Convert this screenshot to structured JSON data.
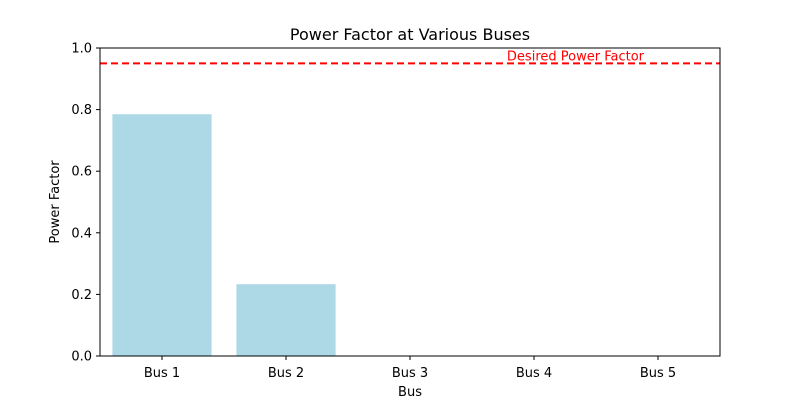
{
  "chart_data": {
    "type": "bar",
    "title": "Power Factor at Various Buses",
    "xlabel": "Bus",
    "ylabel": "Power Factor",
    "categories": [
      "Bus 1",
      "Bus 2",
      "Bus 3",
      "Bus 4",
      "Bus 5"
    ],
    "values": [
      0.785,
      0.233,
      0,
      0,
      0
    ],
    "ylim": [
      0,
      1.0
    ],
    "yticks": [
      0.0,
      0.2,
      0.4,
      0.6,
      0.8,
      1.0
    ],
    "ytick_labels": [
      "0.0",
      "0.2",
      "0.4",
      "0.6",
      "0.8",
      "1.0"
    ],
    "grid": false,
    "bar_color": "#add8e6",
    "reference_line": {
      "value": 0.95,
      "label": "Desired Power Factor",
      "color": "#ff0000",
      "style": "dashed"
    }
  }
}
